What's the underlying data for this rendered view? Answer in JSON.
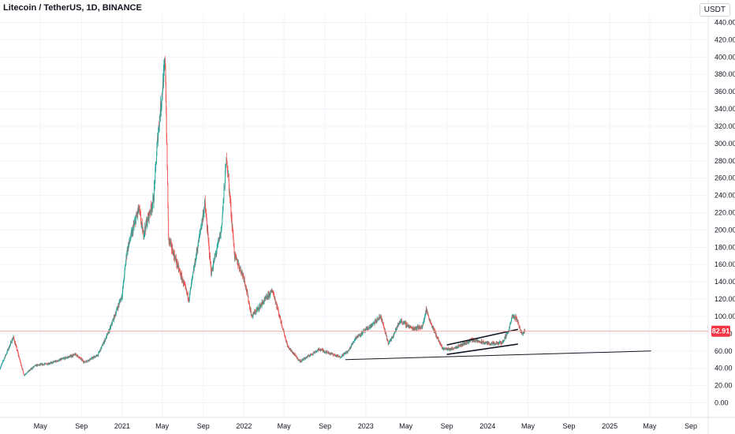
{
  "chart_data": {
    "type": "candlestick",
    "title": "Litecoin / TetherUS, 1D, BINANCE",
    "currency": "USDT",
    "last_price": "82.91",
    "y_range": [
      -5,
      445
    ],
    "y_ticks": [
      "0.00",
      "20.00",
      "40.00",
      "60.00",
      "80.00",
      "100.00",
      "120.00",
      "140.00",
      "160.00",
      "180.00",
      "200.00",
      "220.00",
      "240.00",
      "260.00",
      "280.00",
      "300.00",
      "320.00",
      "340.00",
      "360.00",
      "380.00",
      "400.00",
      "420.00",
      "440.00"
    ],
    "x_ticks": [
      "May",
      "Sep",
      "2021",
      "May",
      "Sep",
      "2022",
      "May",
      "Sep",
      "2023",
      "May",
      "Sep",
      "2024",
      "May",
      "Sep",
      "2025",
      "May",
      "Sep"
    ],
    "x_tick_dates": [
      "2020-05-01",
      "2020-09-01",
      "2021-01-01",
      "2021-05-01",
      "2021-09-01",
      "2022-01-01",
      "2022-05-01",
      "2022-09-01",
      "2023-01-01",
      "2023-05-01",
      "2023-09-01",
      "2024-01-01",
      "2024-05-01",
      "2024-09-01",
      "2025-01-01",
      "2025-05-01",
      "2025-09-01"
    ],
    "price_path": [
      [
        "2020-01-01",
        40
      ],
      [
        "2020-02-10",
        76
      ],
      [
        "2020-03-13",
        32
      ],
      [
        "2020-04-15",
        43
      ],
      [
        "2020-06-01",
        46
      ],
      [
        "2020-08-15",
        56
      ],
      [
        "2020-09-10",
        47
      ],
      [
        "2020-10-20",
        55
      ],
      [
        "2020-11-25",
        85
      ],
      [
        "2021-01-01",
        125
      ],
      [
        "2021-01-15",
        175
      ],
      [
        "2021-02-20",
        225
      ],
      [
        "2021-03-05",
        195
      ],
      [
        "2021-04-05",
        235
      ],
      [
        "2021-04-18",
        310
      ],
      [
        "2021-05-10",
        395
      ],
      [
        "2021-05-20",
        190
      ],
      [
        "2021-06-15",
        160
      ],
      [
        "2021-07-20",
        120
      ],
      [
        "2021-08-15",
        180
      ],
      [
        "2021-09-06",
        230
      ],
      [
        "2021-09-25",
        150
      ],
      [
        "2021-10-25",
        200
      ],
      [
        "2021-11-10",
        285
      ],
      [
        "2021-12-04",
        170
      ],
      [
        "2022-01-01",
        145
      ],
      [
        "2022-01-24",
        100
      ],
      [
        "2022-03-28",
        130
      ],
      [
        "2022-05-12",
        65
      ],
      [
        "2022-06-18",
        48
      ],
      [
        "2022-08-15",
        62
      ],
      [
        "2022-10-15",
        53
      ],
      [
        "2022-11-10",
        60
      ],
      [
        "2022-12-01",
        75
      ],
      [
        "2023-01-20",
        90
      ],
      [
        "2023-02-15",
        100
      ],
      [
        "2023-03-10",
        68
      ],
      [
        "2023-04-15",
        95
      ],
      [
        "2023-05-20",
        86
      ],
      [
        "2023-06-20",
        88
      ],
      [
        "2023-07-01",
        108
      ],
      [
        "2023-07-15",
        92
      ],
      [
        "2023-08-18",
        63
      ],
      [
        "2023-09-12",
        62
      ],
      [
        "2023-10-20",
        68
      ],
      [
        "2023-11-15",
        73
      ],
      [
        "2023-12-15",
        70
      ],
      [
        "2024-01-20",
        68
      ],
      [
        "2024-02-15",
        70
      ],
      [
        "2024-03-05",
        85
      ],
      [
        "2024-03-15",
        100
      ],
      [
        "2024-03-28",
        98
      ],
      [
        "2024-04-12",
        80
      ],
      [
        "2024-04-22",
        83
      ]
    ],
    "trendlines": [
      {
        "from": [
          "2022-11-01",
          50
        ],
        "to": [
          "2025-05-05",
          60
        ]
      },
      {
        "from": [
          "2023-09-01",
          56
        ],
        "to": [
          "2024-04-01",
          68
        ]
      },
      {
        "from": [
          "2023-09-01",
          67
        ],
        "to": [
          "2024-04-01",
          85
        ]
      }
    ],
    "horizontal_line": 82.91,
    "grid": true
  }
}
